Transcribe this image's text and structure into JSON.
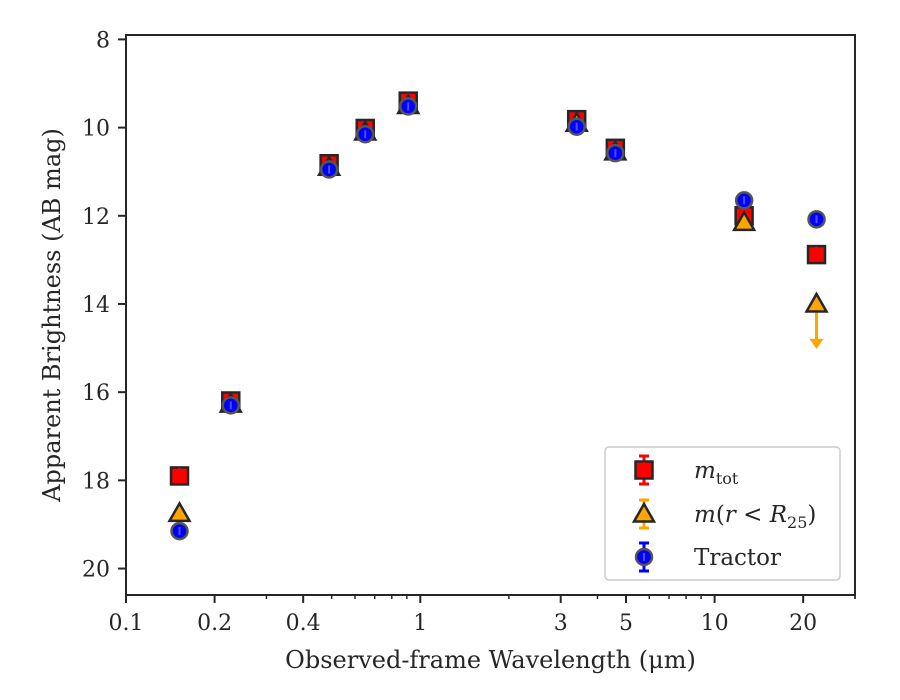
{
  "chart_data": {
    "type": "scatter",
    "xscale": "log",
    "yaxis_inverted": true,
    "xlabel": "Observed-frame Wavelength (μm)",
    "ylabel": "Apparent Brightness (AB mag)",
    "xlim": [
      0.1,
      30
    ],
    "ylim": [
      20.6,
      7.9
    ],
    "x_ticks": [
      {
        "value": 0.1,
        "label": "0.1"
      },
      {
        "value": 0.2,
        "label": "0.2"
      },
      {
        "value": 0.4,
        "label": "0.4"
      },
      {
        "value": 1,
        "label": "1"
      },
      {
        "value": 3,
        "label": "3"
      },
      {
        "value": 5,
        "label": "5"
      },
      {
        "value": 10,
        "label": "10"
      },
      {
        "value": 20,
        "label": "20"
      }
    ],
    "y_ticks": [
      {
        "value": 8,
        "label": "8"
      },
      {
        "value": 10,
        "label": "10"
      },
      {
        "value": 12,
        "label": "12"
      },
      {
        "value": 14,
        "label": "14"
      },
      {
        "value": 16,
        "label": "16"
      },
      {
        "value": 18,
        "label": "18"
      },
      {
        "value": 20,
        "label": "20"
      }
    ],
    "legend_position": "lower-right",
    "grid": false,
    "series": [
      {
        "name": "m_tot",
        "legend_label": {
          "italic": "m",
          "sub": "tot"
        },
        "marker": "square",
        "color": "#ff0000",
        "edge": "#262626",
        "points": [
          {
            "x": 0.152,
            "y": 17.9
          },
          {
            "x": 0.227,
            "y": 16.2
          },
          {
            "x": 0.49,
            "y": 10.82
          },
          {
            "x": 0.65,
            "y": 10.02
          },
          {
            "x": 0.91,
            "y": 9.4
          },
          {
            "x": 3.4,
            "y": 9.82
          },
          {
            "x": 4.6,
            "y": 10.47
          },
          {
            "x": 12.6,
            "y": 12.0
          },
          {
            "x": 22.2,
            "y": 12.88
          }
        ]
      },
      {
        "name": "m(r < R25)",
        "legend_label": {
          "italic": "m",
          "mid": "(",
          "italic2": "r",
          "op": " < ",
          "italic3": "R",
          "sub": "25",
          "end": ")"
        },
        "marker": "triangle",
        "color": "#ffa500",
        "edge": "#262626",
        "points": [
          {
            "x": 0.152,
            "y": 18.75
          },
          {
            "x": 0.227,
            "y": 16.27
          },
          {
            "x": 0.49,
            "y": 10.9
          },
          {
            "x": 0.65,
            "y": 10.1
          },
          {
            "x": 0.91,
            "y": 9.5
          },
          {
            "x": 3.4,
            "y": 9.9
          },
          {
            "x": 4.6,
            "y": 10.55
          },
          {
            "x": 12.6,
            "y": 12.15
          },
          {
            "x": 22.2,
            "y": 14.0,
            "upper_limit": true,
            "limit_to": 14.95
          }
        ]
      },
      {
        "name": "Tractor",
        "marker": "circle",
        "color": "#0000ff",
        "edge": "#262626",
        "points": [
          {
            "x": 0.152,
            "y": 19.15
          },
          {
            "x": 0.227,
            "y": 16.3
          },
          {
            "x": 0.49,
            "y": 10.95
          },
          {
            "x": 0.65,
            "y": 10.15
          },
          {
            "x": 0.91,
            "y": 9.52
          },
          {
            "x": 3.4,
            "y": 9.98
          },
          {
            "x": 4.6,
            "y": 10.58
          },
          {
            "x": 12.6,
            "y": 11.65
          },
          {
            "x": 22.2,
            "y": 12.08
          }
        ]
      }
    ]
  }
}
